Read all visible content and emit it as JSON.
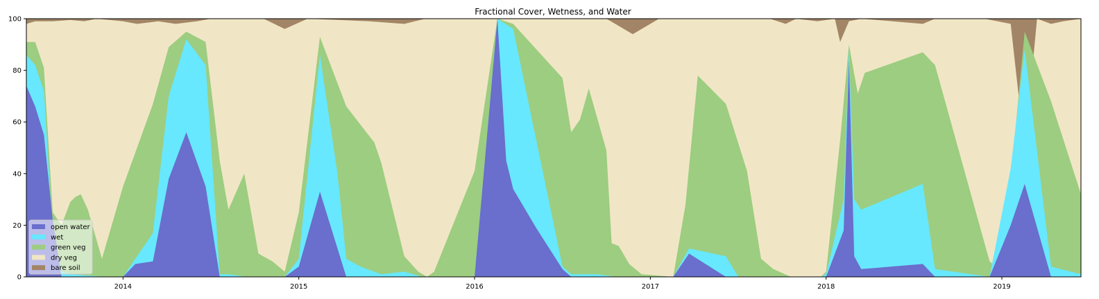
{
  "chart_data": {
    "type": "area",
    "title": "Fractional Cover, Wetness, and Water",
    "xlabel": "",
    "ylabel": "",
    "xlim": [
      2013.45,
      2019.45
    ],
    "ylim": [
      0,
      100
    ],
    "stacked": true,
    "x_ticks": [
      2014,
      2015,
      2016,
      2017,
      2018,
      2019
    ],
    "x_tick_labels": [
      "2014",
      "2015",
      "2016",
      "2017",
      "2018",
      "2019"
    ],
    "y_ticks": [
      0,
      20,
      40,
      60,
      80,
      100
    ],
    "y_tick_labels": [
      "0",
      "20",
      "40",
      "60",
      "80",
      "100"
    ],
    "grid": false,
    "legend_position": "lower-left",
    "series": [
      {
        "name": "open water",
        "color": "#6A6ECC",
        "points": [
          [
            2013.45,
            74
          ],
          [
            2013.5,
            66
          ],
          [
            2013.55,
            55
          ],
          [
            2013.6,
            22
          ],
          [
            2013.65,
            0
          ],
          [
            2014.0,
            0
          ],
          [
            2014.07,
            5
          ],
          [
            2014.17,
            6
          ],
          [
            2014.26,
            38
          ],
          [
            2014.36,
            56
          ],
          [
            2014.47,
            35
          ],
          [
            2014.55,
            0
          ],
          [
            2014.92,
            0
          ],
          [
            2015.0,
            4
          ],
          [
            2015.12,
            33
          ],
          [
            2015.27,
            0
          ],
          [
            2016.0,
            0
          ],
          [
            2016.13,
            100
          ],
          [
            2016.18,
            45
          ],
          [
            2016.22,
            34
          ],
          [
            2016.35,
            19
          ],
          [
            2016.5,
            3
          ],
          [
            2016.55,
            0
          ],
          [
            2017.13,
            0
          ],
          [
            2017.22,
            9
          ],
          [
            2017.43,
            0
          ],
          [
            2017.97,
            0
          ],
          [
            2018.0,
            0
          ],
          [
            2018.1,
            18
          ],
          [
            2018.13,
            84
          ],
          [
            2018.16,
            8
          ],
          [
            2018.2,
            3
          ],
          [
            2018.55,
            5
          ],
          [
            2018.62,
            0
          ],
          [
            2018.93,
            0
          ],
          [
            2019.05,
            20
          ],
          [
            2019.13,
            36
          ],
          [
            2019.28,
            0
          ],
          [
            2019.45,
            0
          ]
        ]
      },
      {
        "name": "wet",
        "color": "#67E8FF",
        "points": [
          [
            2013.45,
            86
          ],
          [
            2013.5,
            82
          ],
          [
            2013.55,
            72
          ],
          [
            2013.6,
            17
          ],
          [
            2013.65,
            2
          ],
          [
            2013.7,
            1
          ],
          [
            2013.9,
            0
          ],
          [
            2014.0,
            0
          ],
          [
            2014.17,
            17
          ],
          [
            2014.26,
            70
          ],
          [
            2014.36,
            92
          ],
          [
            2014.47,
            82
          ],
          [
            2014.55,
            1
          ],
          [
            2014.6,
            1
          ],
          [
            2014.7,
            0
          ],
          [
            2014.92,
            0
          ],
          [
            2015.0,
            7
          ],
          [
            2015.12,
            86
          ],
          [
            2015.22,
            40
          ],
          [
            2015.27,
            7
          ],
          [
            2015.35,
            4
          ],
          [
            2015.47,
            1
          ],
          [
            2015.6,
            2
          ],
          [
            2015.7,
            0
          ],
          [
            2016.0,
            0
          ],
          [
            2016.13,
            100
          ],
          [
            2016.22,
            96
          ],
          [
            2016.5,
            4
          ],
          [
            2016.55,
            1
          ],
          [
            2016.7,
            1
          ],
          [
            2016.8,
            0
          ],
          [
            2017.13,
            0
          ],
          [
            2017.22,
            11
          ],
          [
            2017.43,
            8
          ],
          [
            2017.5,
            0
          ],
          [
            2017.97,
            0
          ],
          [
            2018.0,
            1
          ],
          [
            2018.1,
            30
          ],
          [
            2018.13,
            88
          ],
          [
            2018.16,
            30
          ],
          [
            2018.2,
            26
          ],
          [
            2018.55,
            36
          ],
          [
            2018.62,
            3
          ],
          [
            2018.93,
            0
          ],
          [
            2019.05,
            42
          ],
          [
            2019.13,
            88
          ],
          [
            2019.28,
            4
          ],
          [
            2019.45,
            1
          ]
        ]
      },
      {
        "name": "green veg",
        "color": "#9DCD80",
        "points": [
          [
            2013.45,
            91
          ],
          [
            2013.5,
            91
          ],
          [
            2013.55,
            81
          ],
          [
            2013.6,
            25
          ],
          [
            2013.65,
            20
          ],
          [
            2013.7,
            29
          ],
          [
            2013.73,
            31
          ],
          [
            2013.76,
            32
          ],
          [
            2013.8,
            26
          ],
          [
            2013.88,
            7
          ],
          [
            2014.0,
            35
          ],
          [
            2014.17,
            67
          ],
          [
            2014.26,
            89
          ],
          [
            2014.36,
            95
          ],
          [
            2014.47,
            91
          ],
          [
            2014.55,
            45
          ],
          [
            2014.6,
            26
          ],
          [
            2014.69,
            40
          ],
          [
            2014.77,
            9
          ],
          [
            2014.85,
            6
          ],
          [
            2014.92,
            2
          ],
          [
            2015.0,
            25
          ],
          [
            2015.12,
            93
          ],
          [
            2015.27,
            66
          ],
          [
            2015.43,
            52
          ],
          [
            2015.47,
            44
          ],
          [
            2015.6,
            8
          ],
          [
            2015.68,
            2
          ],
          [
            2015.73,
            0
          ],
          [
            2015.77,
            2
          ],
          [
            2016.0,
            41
          ],
          [
            2016.13,
            100
          ],
          [
            2016.22,
            98
          ],
          [
            2016.5,
            77
          ],
          [
            2016.55,
            56
          ],
          [
            2016.6,
            61
          ],
          [
            2016.65,
            73
          ],
          [
            2016.75,
            49
          ],
          [
            2016.78,
            13
          ],
          [
            2016.82,
            12
          ],
          [
            2016.88,
            5
          ],
          [
            2016.95,
            1
          ],
          [
            2017.13,
            0
          ],
          [
            2017.2,
            28
          ],
          [
            2017.27,
            78
          ],
          [
            2017.43,
            67
          ],
          [
            2017.55,
            41
          ],
          [
            2017.63,
            7
          ],
          [
            2017.7,
            3
          ],
          [
            2017.8,
            0
          ],
          [
            2017.97,
            0
          ],
          [
            2018.0,
            2
          ],
          [
            2018.08,
            53
          ],
          [
            2018.13,
            90
          ],
          [
            2018.18,
            71
          ],
          [
            2018.22,
            79
          ],
          [
            2018.55,
            87
          ],
          [
            2018.62,
            82
          ],
          [
            2018.93,
            6
          ],
          [
            2019.0,
            2
          ],
          [
            2019.13,
            95
          ],
          [
            2019.28,
            68
          ],
          [
            2019.45,
            32
          ]
        ]
      },
      {
        "name": "dry veg",
        "color": "#F0E6C6",
        "points": [
          [
            2013.45,
            98
          ],
          [
            2013.5,
            99
          ],
          [
            2013.6,
            99
          ],
          [
            2013.7,
            99.5
          ],
          [
            2013.78,
            99
          ],
          [
            2013.85,
            100
          ],
          [
            2014.0,
            99
          ],
          [
            2014.08,
            98
          ],
          [
            2014.2,
            99
          ],
          [
            2014.3,
            98
          ],
          [
            2014.42,
            99
          ],
          [
            2014.5,
            100
          ],
          [
            2014.8,
            100
          ],
          [
            2014.92,
            96
          ],
          [
            2015.05,
            100
          ],
          [
            2015.4,
            99
          ],
          [
            2015.6,
            98
          ],
          [
            2015.72,
            100
          ],
          [
            2016.75,
            100
          ],
          [
            2016.9,
            94
          ],
          [
            2017.05,
            100
          ],
          [
            2017.68,
            100
          ],
          [
            2017.77,
            98
          ],
          [
            2017.83,
            100
          ],
          [
            2017.95,
            99
          ],
          [
            2018.05,
            100
          ],
          [
            2018.08,
            91
          ],
          [
            2018.13,
            99
          ],
          [
            2018.2,
            100
          ],
          [
            2018.55,
            98
          ],
          [
            2018.62,
            100
          ],
          [
            2018.9,
            100
          ],
          [
            2019.05,
            98
          ],
          [
            2019.13,
            49
          ],
          [
            2019.2,
            100
          ],
          [
            2019.28,
            98
          ],
          [
            2019.35,
            99
          ],
          [
            2019.45,
            100
          ]
        ]
      },
      {
        "name": "bare soil",
        "color": "#A28566",
        "points": [
          [
            2013.45,
            100
          ],
          [
            2019.45,
            100
          ]
        ]
      }
    ]
  }
}
